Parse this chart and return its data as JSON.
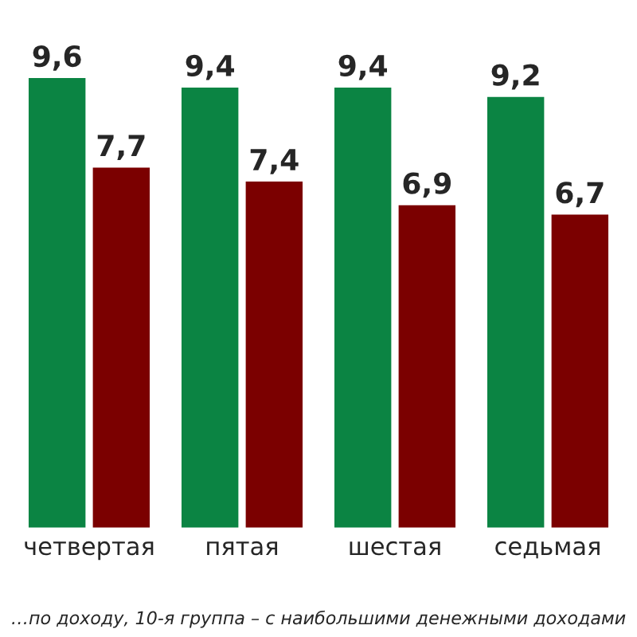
{
  "chart_data": {
    "type": "bar",
    "categories": [
      "четвертая",
      "пятая",
      "шестая",
      "седьмая"
    ],
    "series": [
      {
        "color": "#0b8443",
        "values": [
          9.6,
          9.4,
          9.4,
          9.2
        ],
        "value_labels": [
          "9,6",
          "9,4",
          "9,4",
          "9,2"
        ]
      },
      {
        "color": "#7b0000",
        "values": [
          7.7,
          7.4,
          6.9,
          6.7
        ],
        "value_labels": [
          "7,7",
          "7,4",
          "6,9",
          "6,7"
        ]
      }
    ],
    "annotations": [
      "…по доходу, 10-я группа – с наибольшими денежными доходами"
    ]
  }
}
